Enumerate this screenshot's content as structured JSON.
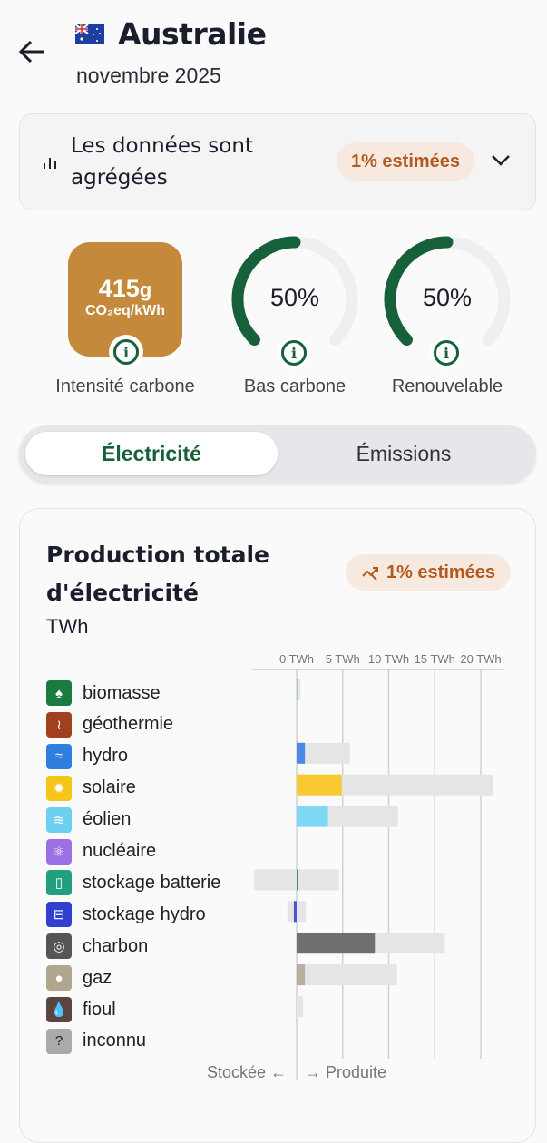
{
  "header": {
    "title": "Australie",
    "subtitle": "novembre 2025",
    "flag": "australia-flag"
  },
  "aggregation": {
    "text": "Les données sont agrégées",
    "badge": "1% estimées"
  },
  "metrics": {
    "carbon_intensity": {
      "value": "415",
      "unit": "g",
      "unit2": "CO₂eq/kWh",
      "label": "Intensité carbone",
      "color": "#c4893a"
    },
    "low_carbon": {
      "value": "50%",
      "fraction": 0.5,
      "label": "Bas carbone"
    },
    "renewable": {
      "value": "50%",
      "fraction": 0.5,
      "label": "Renouvelable"
    },
    "gauge_color": "#17613a"
  },
  "tabs": [
    {
      "label": "Électricité",
      "active": true
    },
    {
      "label": "Émissions",
      "active": false
    }
  ],
  "production": {
    "title": "Production totale d'électricité",
    "unit": "TWh",
    "badge": "1% estimées",
    "footer_left": "Stockée ←",
    "footer_right": "→ Produite"
  },
  "chart_data": {
    "type": "bar",
    "xlim": [
      -4.7,
      22
    ],
    "xticks": [
      0,
      5,
      10,
      15,
      20
    ],
    "tick_labels": [
      "0 TWh",
      "5 TWh",
      "10 TWh",
      "15 TWh",
      "20 TWh"
    ],
    "categories": [
      "biomasse",
      "géothermie",
      "hydro",
      "solaire",
      "éolien",
      "nucléaire",
      "stockage batterie",
      "stockage hydro",
      "charbon",
      "gaz",
      "fioul",
      "inconnu"
    ],
    "icons": [
      "sprout-icon",
      "heat-waves-icon",
      "water-waves-icon",
      "sun-icon",
      "wind-icon",
      "atom-icon",
      "battery-icon",
      "dam-icon",
      "coal-icon",
      "gas-flame-icon",
      "oil-drop-icon",
      "question-icon"
    ],
    "colors": [
      "#1b7a3e",
      "#a1401d",
      "#2f7fe0",
      "#f5c518",
      "#6cd0f0",
      "#9c6fe4",
      "#21a07e",
      "#2f3fcf",
      "#555555",
      "#b0a58f",
      "#5b4340",
      "#aaaaaa"
    ],
    "bar_colors": [
      "#9fd7b8",
      "#a1401d",
      "#4a8ae6",
      "#f8c930",
      "#7fd8f3",
      "#9c6fe4",
      "#3d8f77",
      "#4a55d6",
      "#707070",
      "#b8af9e",
      "#5b4340",
      "#aaaaaa"
    ],
    "series": [
      {
        "name": "Produite",
        "values": [
          0.2,
          0,
          0.9,
          4.9,
          3.4,
          0,
          0.05,
          -0.3,
          8.5,
          0.9,
          0,
          0
        ]
      },
      {
        "name": "Capacité",
        "range": [
          [
            0,
            0.4
          ],
          null,
          [
            0,
            5.8
          ],
          [
            0,
            21.3
          ],
          [
            0,
            11
          ],
          null,
          [
            -4.6,
            4.6
          ],
          [
            -1,
            1
          ],
          [
            0,
            16.1
          ],
          [
            0,
            10.9
          ],
          [
            0,
            0.7
          ],
          null
        ]
      }
    ]
  }
}
